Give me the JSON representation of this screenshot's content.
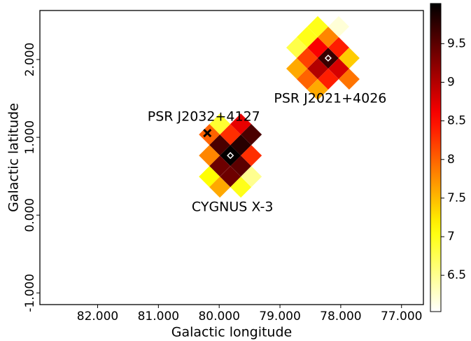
{
  "chart_data": {
    "type": "heatmap",
    "xlabel": "Galactic longitude",
    "ylabel": "Galactic latitude",
    "xlim": [
      82.95,
      76.64
    ],
    "ylim": [
      -1.15,
      2.63
    ],
    "xticks": [
      {
        "value": 82,
        "label": "82.000"
      },
      {
        "value": 81,
        "label": "81.000"
      },
      {
        "value": 80,
        "label": "80.000"
      },
      {
        "value": 79,
        "label": "79.000"
      },
      {
        "value": 78,
        "label": "78.000"
      },
      {
        "value": 77,
        "label": "77.000"
      }
    ],
    "yticks": [
      {
        "value": -1,
        "label": "-1.000"
      },
      {
        "value": 0,
        "label": "0.000"
      },
      {
        "value": 1,
        "label": "1.000"
      },
      {
        "value": 2,
        "label": "2.000"
      }
    ],
    "colormap": "hot_r",
    "clim": [
      6.03,
      10.02
    ],
    "cticks": [
      6.5,
      7,
      7.5,
      8,
      8.5,
      9,
      9.5
    ],
    "x": [
      79.816,
      79.989,
      79.644,
      79.989,
      79.644,
      79.816,
      80.161,
      79.471,
      79.816,
      79.989,
      79.644,
      79.471,
      80.161,
      79.989,
      79.644,
      79.471,
      80.161,
      78.207,
      78.379,
      78.034,
      78.379,
      78.034,
      78.552,
      77.862,
      78.207,
      78.207,
      78.552,
      78.379,
      78.724,
      78.034,
      78.552,
      78.379,
      78.724,
      77.862
    ],
    "y": [
      0.766,
      0.901,
      0.901,
      0.631,
      0.631,
      1.036,
      0.766,
      0.766,
      0.495,
      1.171,
      1.171,
      1.036,
      0.495,
      0.36,
      0.36,
      0.495,
      1.036,
      2.018,
      2.153,
      2.153,
      1.883,
      1.883,
      2.018,
      2.018,
      2.288,
      1.748,
      2.288,
      2.423,
      2.153,
      2.423,
      1.748,
      1.613,
      1.883,
      1.748
    ],
    "values": [
      10.0,
      9.6,
      9.8,
      9.4,
      9.5,
      8.3,
      7.8,
      8.3,
      9.4,
      6.9,
      8.7,
      9.6,
      7.1,
      7.6,
      7.0,
      6.5,
      8.0,
      9.7,
      8.6,
      8.4,
      9.0,
      8.8,
      8.2,
      7.4,
      7.8,
      8.4,
      7.0,
      7.0,
      6.8,
      6.2,
      8.0,
      7.6,
      7.6,
      7.9
    ],
    "sources": [
      {
        "name": "PSR J2032+4127",
        "x": 80.195,
        "y": 1.054,
        "marker": "x"
      },
      {
        "name": "CYGNUS X-3",
        "x": 79.816,
        "y": 0.766,
        "marker": "diamond"
      },
      {
        "name": "PSR J2021+4026",
        "x": 78.207,
        "y": 2.018,
        "marker": "diamond"
      }
    ]
  }
}
